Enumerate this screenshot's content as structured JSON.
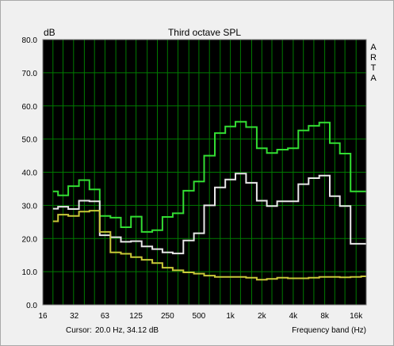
{
  "app_label": "A R T A",
  "cursor": {
    "label": "Cursor:",
    "value": "20.0 Hz, 34.12 dB"
  },
  "chart_data": {
    "type": "line",
    "title": "Third octave SPL",
    "ylabel": "dB",
    "xlabel": "Frequency band (Hz)",
    "ylim": [
      0,
      80
    ],
    "y_ticks": [
      0,
      10,
      20,
      30,
      40,
      50,
      60,
      70,
      80
    ],
    "y_tick_labels": [
      "0.0",
      "10.0",
      "20.0",
      "30.0",
      "40.0",
      "50.0",
      "60.0",
      "70.0",
      "80.0"
    ],
    "x_tick_labels": [
      {
        "hz": 16,
        "label": "16"
      },
      {
        "hz": 32,
        "label": "32"
      },
      {
        "hz": 63,
        "label": "63"
      },
      {
        "hz": 125,
        "label": "125"
      },
      {
        "hz": 250,
        "label": "250"
      },
      {
        "hz": 500,
        "label": "500"
      },
      {
        "hz": 1000,
        "label": "1k"
      },
      {
        "hz": 2000,
        "label": "2k"
      },
      {
        "hz": 4000,
        "label": "4k"
      },
      {
        "hz": 8000,
        "label": "8k"
      },
      {
        "hz": 16000,
        "label": "16k"
      }
    ],
    "bands": [
      20,
      25,
      31.5,
      40,
      50,
      63,
      80,
      100,
      125,
      160,
      200,
      250,
      315,
      400,
      500,
      630,
      800,
      1000,
      1250,
      1600,
      2000,
      2500,
      3150,
      4000,
      5000,
      6300,
      8000,
      10000,
      12500,
      16000,
      20000
    ],
    "grid": true,
    "series": [
      {
        "color": "#33dd33",
        "values": [
          34.2,
          33.0,
          35.8,
          37.6,
          34.8,
          26.8,
          26.3,
          23.4,
          26.6,
          22.0,
          22.5,
          26.5,
          27.6,
          34.4,
          37.2,
          45.0,
          51.8,
          53.8,
          55.2,
          53.6,
          47.2,
          45.8,
          46.8,
          47.2,
          52.6,
          54.0,
          55.0,
          48.8,
          45.6,
          34.2,
          34.2
        ]
      },
      {
        "color": "#e8e8e8",
        "values": [
          29.0,
          29.6,
          28.9,
          31.4,
          31.2,
          21.0,
          20.4,
          19.0,
          19.2,
          17.6,
          16.8,
          15.8,
          15.5,
          19.4,
          21.6,
          30.0,
          35.4,
          37.8,
          39.6,
          36.8,
          31.4,
          29.8,
          31.2,
          31.2,
          36.4,
          38.2,
          39.0,
          32.8,
          29.8,
          18.4,
          18.4
        ]
      },
      {
        "color": "#c8c838",
        "values": [
          25.2,
          27.2,
          26.8,
          28.1,
          28.4,
          22.0,
          15.8,
          15.4,
          14.4,
          13.6,
          12.6,
          11.2,
          10.4,
          9.8,
          9.4,
          8.8,
          8.4,
          8.4,
          8.4,
          8.2,
          7.6,
          7.8,
          8.2,
          8.0,
          8.0,
          8.2,
          8.4,
          8.4,
          8.3,
          8.4,
          8.6
        ]
      }
    ]
  }
}
